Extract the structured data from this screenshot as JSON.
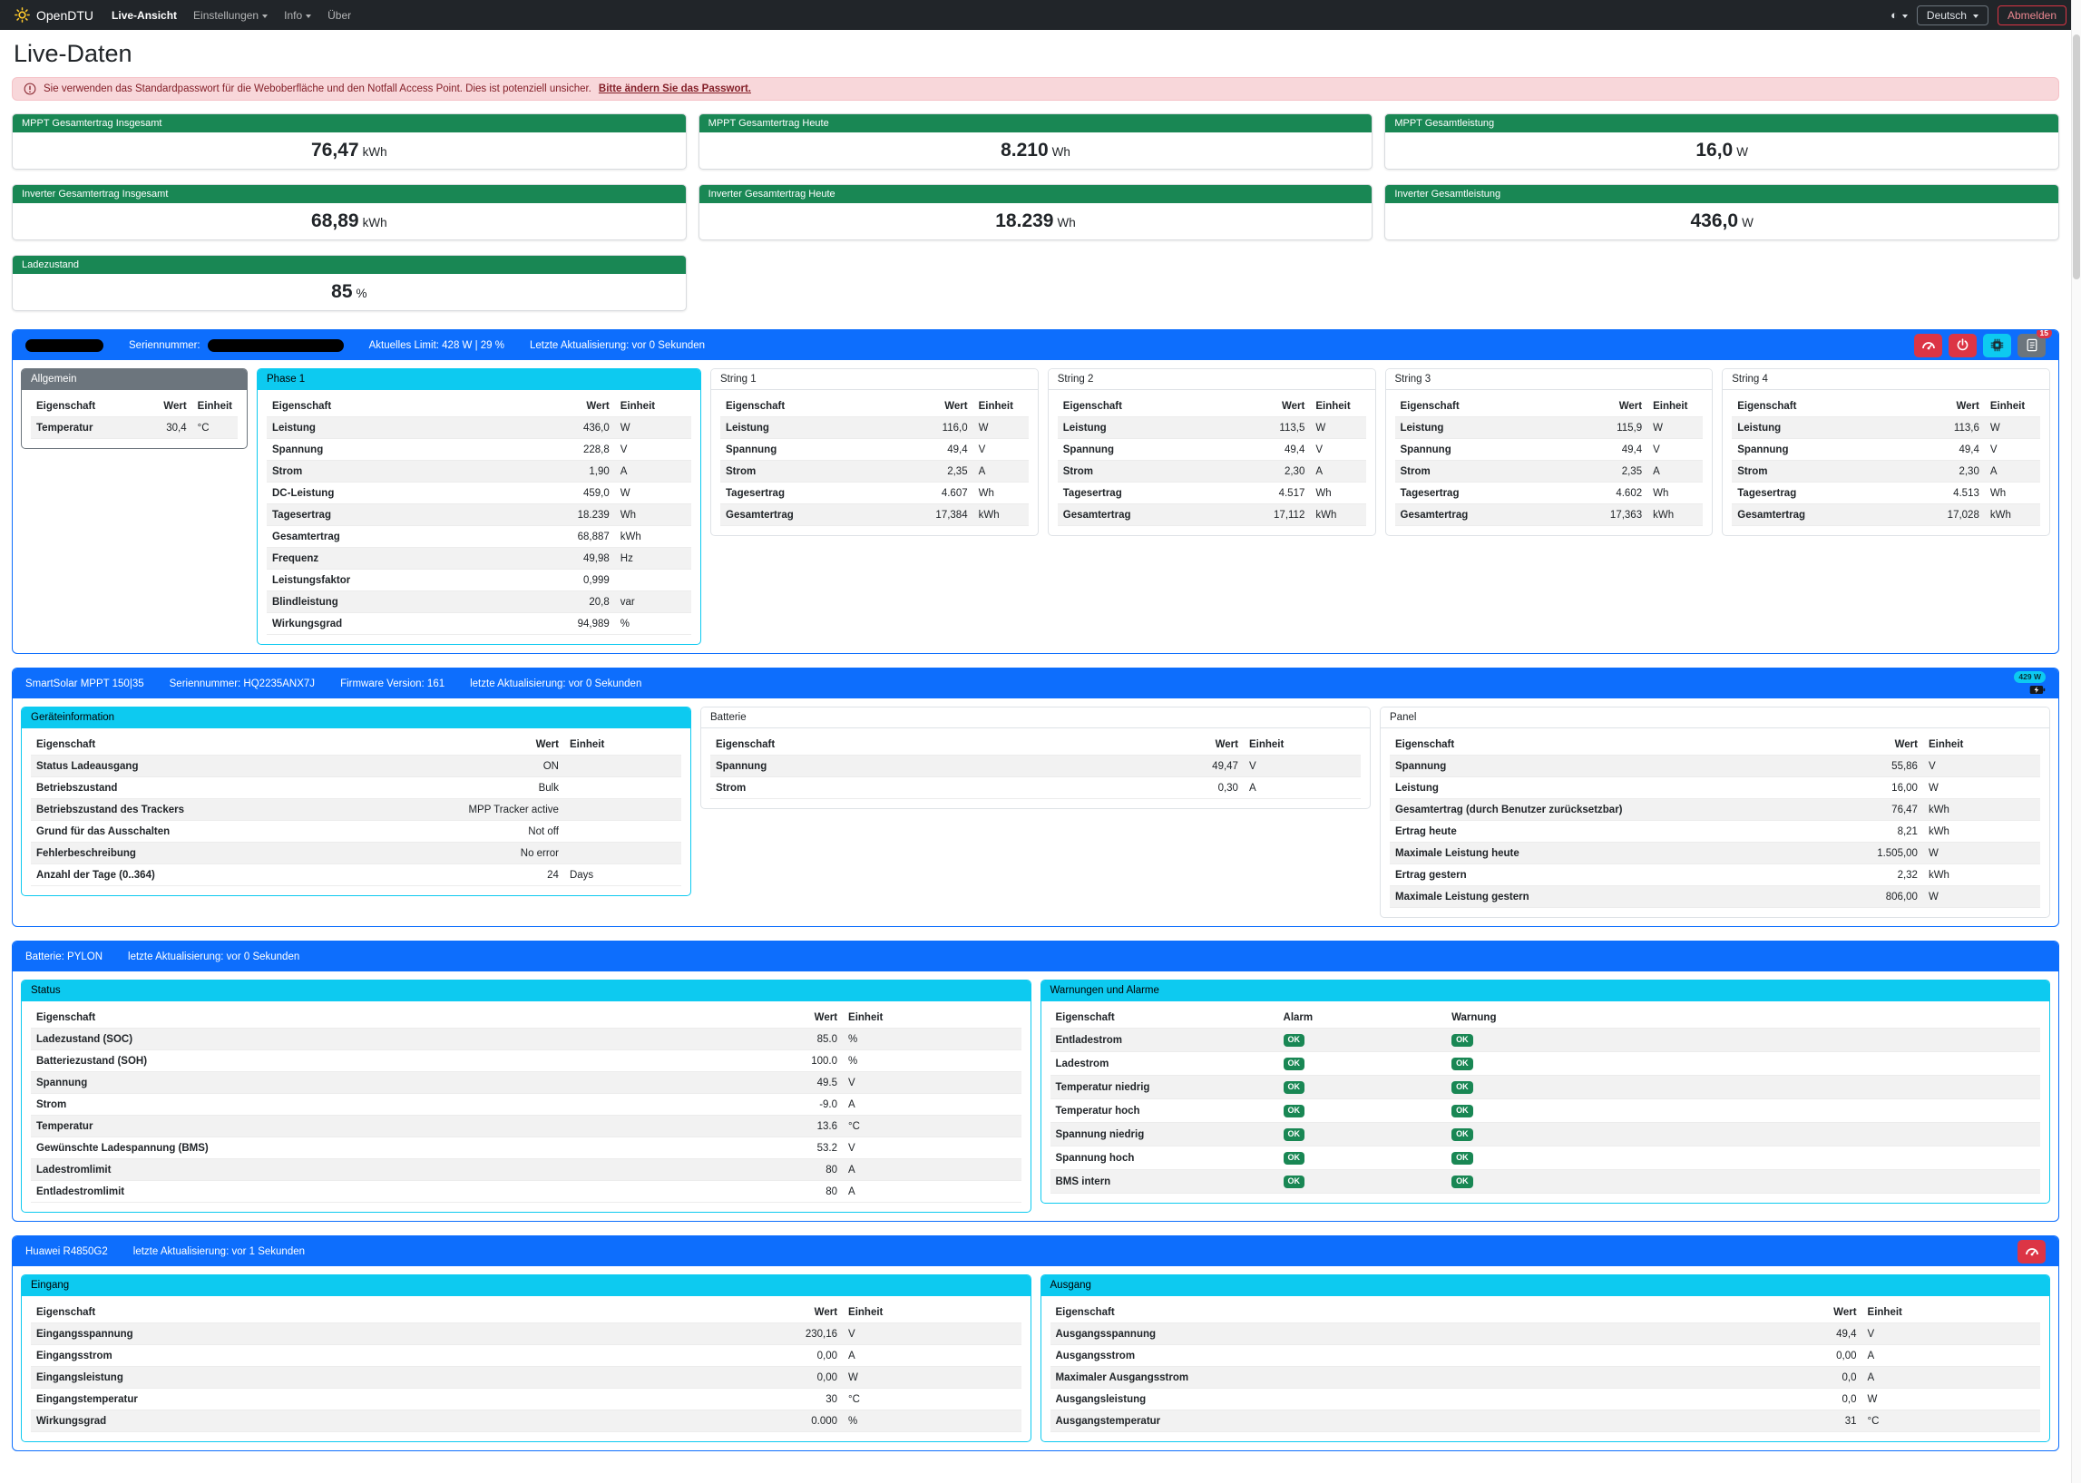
{
  "navbar": {
    "brand": "OpenDTU",
    "items": [
      {
        "label": "Live-Ansicht"
      },
      {
        "label": "Einstellungen"
      },
      {
        "label": "Info"
      },
      {
        "label": "Über"
      }
    ],
    "theme_icon": "◐",
    "language": "Deutsch",
    "logout": "Abmelden"
  },
  "page_title": "Live-Daten",
  "alert": {
    "text": "Sie verwenden das Standardpasswort für die Weboberfläche und den Notfall Access Point. Dies ist potenziell unsicher.",
    "link": "Bitte ändern Sie das Passwort."
  },
  "stat_cards": [
    {
      "label": "MPPT Gesamtertrag Insgesamt",
      "value": "76,47",
      "unit": "kWh"
    },
    {
      "label": "MPPT Gesamtertrag Heute",
      "value": "8.210",
      "unit": "Wh"
    },
    {
      "label": "MPPT Gesamtleistung",
      "value": "16,0",
      "unit": "W"
    },
    {
      "label": "Inverter Gesamtertrag Insgesamt",
      "value": "68,89",
      "unit": "kWh"
    },
    {
      "label": "Inverter Gesamtertrag Heute",
      "value": "18.239",
      "unit": "Wh"
    },
    {
      "label": "Inverter Gesamtleistung",
      "value": "436,0",
      "unit": "W"
    },
    {
      "label": "Ladezustand",
      "value": "85",
      "unit": "%"
    }
  ],
  "table_headers": {
    "property": "Eigenschaft",
    "value": "Wert",
    "unit": "Einheit"
  },
  "inverter_section": {
    "serial_label": "Seriennummer:",
    "limit_text": "Aktuelles Limit: 428 W | 29 %",
    "updated_text": "Letzte Aktualisierung: vor 0 Sekunden",
    "journal_badge": "15",
    "allgemein": {
      "title": "Allgemein",
      "rows": [
        [
          "Temperatur",
          "30,4",
          "°C"
        ]
      ]
    },
    "phase1": {
      "title": "Phase 1",
      "rows": [
        [
          "Leistung",
          "436,0",
          "W"
        ],
        [
          "Spannung",
          "228,8",
          "V"
        ],
        [
          "Strom",
          "1,90",
          "A"
        ],
        [
          "DC-Leistung",
          "459,0",
          "W"
        ],
        [
          "Tagesertrag",
          "18.239",
          "Wh"
        ],
        [
          "Gesamtertrag",
          "68,887",
          "kWh"
        ],
        [
          "Frequenz",
          "49,98",
          "Hz"
        ],
        [
          "Leistungsfaktor",
          "0,999",
          ""
        ],
        [
          "Blindleistung",
          "20,8",
          "var"
        ],
        [
          "Wirkungsgrad",
          "94,989",
          "%"
        ]
      ]
    },
    "strings": [
      {
        "title": "String 1",
        "rows": [
          [
            "Leistung",
            "116,0",
            "W"
          ],
          [
            "Spannung",
            "49,4",
            "V"
          ],
          [
            "Strom",
            "2,35",
            "A"
          ],
          [
            "Tagesertrag",
            "4.607",
            "Wh"
          ],
          [
            "Gesamtertrag",
            "17,384",
            "kWh"
          ]
        ]
      },
      {
        "title": "String 2",
        "rows": [
          [
            "Leistung",
            "113,5",
            "W"
          ],
          [
            "Spannung",
            "49,4",
            "V"
          ],
          [
            "Strom",
            "2,30",
            "A"
          ],
          [
            "Tagesertrag",
            "4.517",
            "Wh"
          ],
          [
            "Gesamtertrag",
            "17,112",
            "kWh"
          ]
        ]
      },
      {
        "title": "String 3",
        "rows": [
          [
            "Leistung",
            "115,9",
            "W"
          ],
          [
            "Spannung",
            "49,4",
            "V"
          ],
          [
            "Strom",
            "2,35",
            "A"
          ],
          [
            "Tagesertrag",
            "4.602",
            "Wh"
          ],
          [
            "Gesamtertrag",
            "17,363",
            "kWh"
          ]
        ]
      },
      {
        "title": "String 4",
        "rows": [
          [
            "Leistung",
            "113,6",
            "W"
          ],
          [
            "Spannung",
            "49,4",
            "V"
          ],
          [
            "Strom",
            "2,30",
            "A"
          ],
          [
            "Tagesertrag",
            "4.513",
            "Wh"
          ],
          [
            "Gesamtertrag",
            "17,028",
            "kWh"
          ]
        ]
      }
    ]
  },
  "mppt_section": {
    "title": "SmartSolar MPPT 150|35",
    "serial": "Seriennummer: HQ2235ANX7J",
    "firmware": "Firmware Version: 161",
    "updated": "letzte Aktualisierung: vor 0 Sekunden",
    "power_badge": "429 W",
    "geraeteinformation": {
      "title": "Geräteinformation",
      "rows": [
        [
          "Status Ladeausgang",
          "ON",
          ""
        ],
        [
          "Betriebszustand",
          "Bulk",
          ""
        ],
        [
          "Betriebszustand des Trackers",
          "MPP Tracker active",
          ""
        ],
        [
          "Grund für das Ausschalten",
          "Not off",
          ""
        ],
        [
          "Fehlerbeschreibung",
          "No error",
          ""
        ],
        [
          "Anzahl der Tage (0..364)",
          "24",
          "Days"
        ]
      ]
    },
    "batterie": {
      "title": "Batterie",
      "rows": [
        [
          "Spannung",
          "49,47",
          "V"
        ],
        [
          "Strom",
          "0,30",
          "A"
        ]
      ]
    },
    "panel": {
      "title": "Panel",
      "rows": [
        [
          "Spannung",
          "55,86",
          "V"
        ],
        [
          "Leistung",
          "16,00",
          "W"
        ],
        [
          "Gesamtertrag (durch Benutzer zurücksetzbar)",
          "76,47",
          "kWh"
        ],
        [
          "Ertrag heute",
          "8,21",
          "kWh"
        ],
        [
          "Maximale Leistung heute",
          "1.505,00",
          "W"
        ],
        [
          "Ertrag gestern",
          "2,32",
          "kWh"
        ],
        [
          "Maximale Leistung gestern",
          "806,00",
          "W"
        ]
      ]
    }
  },
  "battery_section": {
    "title": "Batterie: PYLON",
    "updated": "letzte Aktualisierung: vor 0 Sekunden",
    "status": {
      "title": "Status",
      "rows": [
        [
          "Ladezustand (SOC)",
          "85.0",
          "%"
        ],
        [
          "Batteriezustand (SOH)",
          "100.0",
          "%"
        ],
        [
          "Spannung",
          "49.5",
          "V"
        ],
        [
          "Strom",
          "-9.0",
          "A"
        ],
        [
          "Temperatur",
          "13.6",
          "°C"
        ],
        [
          "Gewünschte Ladespannung (BMS)",
          "53.2",
          "V"
        ],
        [
          "Ladestromlimit",
          "80",
          "A"
        ],
        [
          "Entladestromlimit",
          "80",
          "A"
        ]
      ]
    },
    "warnings": {
      "title": "Warnungen und Alarme",
      "headers": {
        "property": "Eigenschaft",
        "alarm": "Alarm",
        "warning": "Warnung"
      },
      "ok_label": "OK",
      "rows": [
        "Entladestrom",
        "Ladestrom",
        "Temperatur niedrig",
        "Temperatur hoch",
        "Spannung niedrig",
        "Spannung hoch",
        "BMS intern"
      ]
    }
  },
  "huawei_section": {
    "title": "Huawei R4850G2",
    "updated": "letzte Aktualisierung: vor 1 Sekunden",
    "eingang": {
      "title": "Eingang",
      "rows": [
        [
          "Eingangsspannung",
          "230,16",
          "V"
        ],
        [
          "Eingangsstrom",
          "0,00",
          "A"
        ],
        [
          "Eingangsleistung",
          "0,00",
          "W"
        ],
        [
          "Eingangstemperatur",
          "30",
          "°C"
        ],
        [
          "Wirkungsgrad",
          "0.000",
          "%"
        ]
      ]
    },
    "ausgang": {
      "title": "Ausgang",
      "rows": [
        [
          "Ausgangsspannung",
          "49,4",
          "V"
        ],
        [
          "Ausgangsstrom",
          "0,00",
          "A"
        ],
        [
          "Maximaler Ausgangsstrom",
          "0,0",
          "A"
        ],
        [
          "Ausgangsleistung",
          "0,0",
          "W"
        ],
        [
          "Ausgangstemperatur",
          "31",
          "°C"
        ]
      ]
    }
  }
}
